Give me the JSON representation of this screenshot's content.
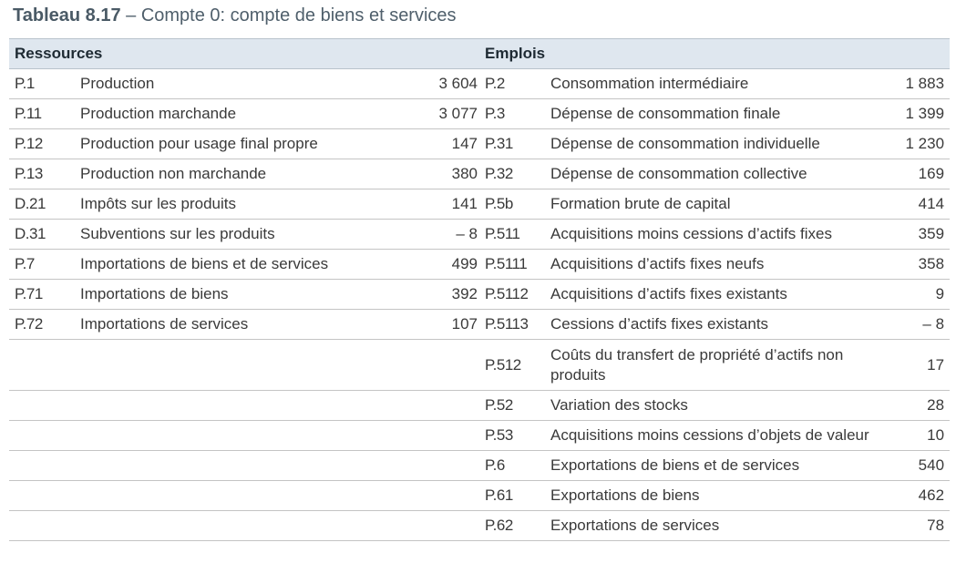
{
  "title": {
    "number": "Tableau 8.17",
    "text": " – Compte 0: compte de biens et services"
  },
  "headers": {
    "resources": "Ressources",
    "uses": "Emplois"
  },
  "rows": [
    {
      "r_code": "P.1",
      "r_label": "Production",
      "r_value": "3 604",
      "e_code": "P.2",
      "e_label": "Consommation intermédiaire",
      "e_value": "1 883"
    },
    {
      "r_code": "P.11",
      "r_label": "Production marchande",
      "r_value": "3 077",
      "e_code": "P.3",
      "e_label": "Dépense de consommation finale",
      "e_value": "1 399"
    },
    {
      "r_code": "P.12",
      "r_label": "Production pour usage final propre",
      "r_value": "147",
      "e_code": "P.31",
      "e_label": "Dépense de consommation individuelle",
      "e_value": "1 230"
    },
    {
      "r_code": "P.13",
      "r_label": "Production non marchande",
      "r_value": "380",
      "e_code": "P.32",
      "e_label": "Dépense de consommation collective",
      "e_value": "169"
    },
    {
      "r_code": "D.21",
      "r_label": "Impôts sur les produits",
      "r_value": "141",
      "e_code": "P.5b",
      "e_label": "Formation brute de capital",
      "e_value": "414"
    },
    {
      "r_code": "D.31",
      "r_label": "Subventions sur les produits",
      "r_value": "– 8",
      "e_code": "P.511",
      "e_label": "Acquisitions moins cessions d’actifs fixes",
      "e_value": "359"
    },
    {
      "r_code": "P.7",
      "r_label": "Importations de biens et de services",
      "r_value": "499",
      "e_code": "P.5111",
      "e_label": "Acquisitions d’actifs fixes neufs",
      "e_value": "358"
    },
    {
      "r_code": "P.71",
      "r_label": "Importations de biens",
      "r_value": "392",
      "e_code": "P.5112",
      "e_label": "Acquisitions d’actifs fixes existants",
      "e_value": "9"
    },
    {
      "r_code": "P.72",
      "r_label": "Importations de services",
      "r_value": "107",
      "e_code": "P.5113",
      "e_label": "Cessions d’actifs fixes existants",
      "e_value": "– 8"
    },
    {
      "r_code": "",
      "r_label": "",
      "r_value": "",
      "e_code": "P.512",
      "e_label": "Coûts du transfert de propriété d’actifs non produits",
      "e_value": "17"
    },
    {
      "r_code": "",
      "r_label": "",
      "r_value": "",
      "e_code": "P.52",
      "e_label": "Variation des stocks",
      "e_value": "28"
    },
    {
      "r_code": "",
      "r_label": "",
      "r_value": "",
      "e_code": "P.53",
      "e_label": "Acquisitions moins cessions d’objets de valeur",
      "e_value": "10"
    },
    {
      "r_code": "",
      "r_label": "",
      "r_value": "",
      "e_code": "P.6",
      "e_label": "Exportations de biens et de services",
      "e_value": "540"
    },
    {
      "r_code": "",
      "r_label": "",
      "r_value": "",
      "e_code": "P.61",
      "e_label": "Exportations de biens",
      "e_value": "462"
    },
    {
      "r_code": "",
      "r_label": "",
      "r_value": "",
      "e_code": "P.62",
      "e_label": "Exportations de services",
      "e_value": "78"
    }
  ]
}
